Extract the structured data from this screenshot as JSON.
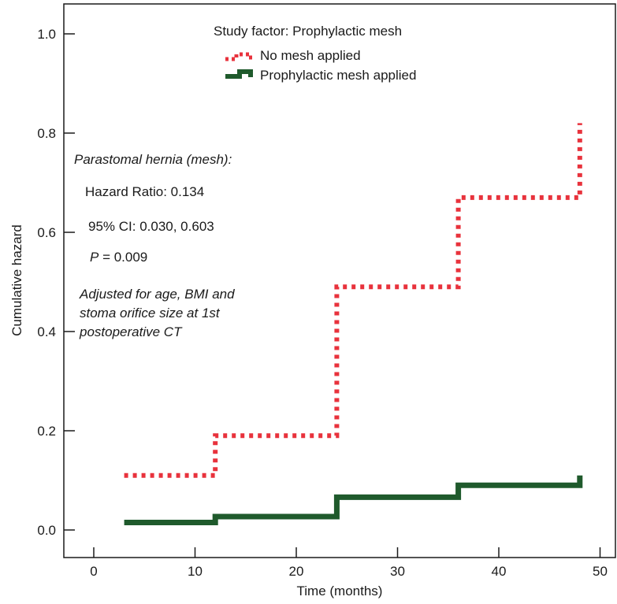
{
  "chart_data": {
    "type": "line",
    "step": true,
    "xlabel": "Time (months)",
    "ylabel": "Cumulative hazard",
    "xlim": [
      -3,
      50
    ],
    "ylim": [
      -0.05,
      1.06
    ],
    "xticks": [
      0,
      10,
      20,
      30,
      40,
      50
    ],
    "yticks": [
      0.0,
      0.2,
      0.4,
      0.6,
      0.8,
      1.0
    ],
    "ytick_labels": [
      "0.0",
      "0.2",
      "0.4",
      "0.6",
      "0.8",
      "1.0"
    ],
    "grid": false,
    "legend": {
      "title": "Study factor: Prophylactic mesh",
      "placement": "top-center"
    },
    "series": [
      {
        "name": "No mesh applied",
        "color": "#e8323c",
        "style": "dotted",
        "points": [
          [
            3,
            0.11
          ],
          [
            12,
            0.11
          ],
          [
            12,
            0.19
          ],
          [
            24,
            0.19
          ],
          [
            24,
            0.49
          ],
          [
            36,
            0.49
          ],
          [
            36,
            0.67
          ],
          [
            48,
            0.67
          ],
          [
            48,
            0.82
          ]
        ]
      },
      {
        "name": "Prophylactic mesh applied",
        "color": "#1f5a2c",
        "style": "solid",
        "points": [
          [
            3,
            0.015
          ],
          [
            12,
            0.015
          ],
          [
            12,
            0.027
          ],
          [
            24,
            0.027
          ],
          [
            24,
            0.066
          ],
          [
            36,
            0.066
          ],
          [
            36,
            0.09
          ],
          [
            48,
            0.09
          ],
          [
            48,
            0.11
          ]
        ]
      }
    ],
    "annotations": {
      "heading": "Parastomal hernia (mesh):",
      "hazard_ratio": "Hazard Ratio: 0.134",
      "ci": "95% CI: 0.030, 0.603",
      "p_symbol": "P",
      "p_value": " = 0.009",
      "adjusted_lines": [
        "Adjusted for age, BMI and",
        "stoma orifice size at 1st",
        "postoperative CT"
      ]
    }
  }
}
